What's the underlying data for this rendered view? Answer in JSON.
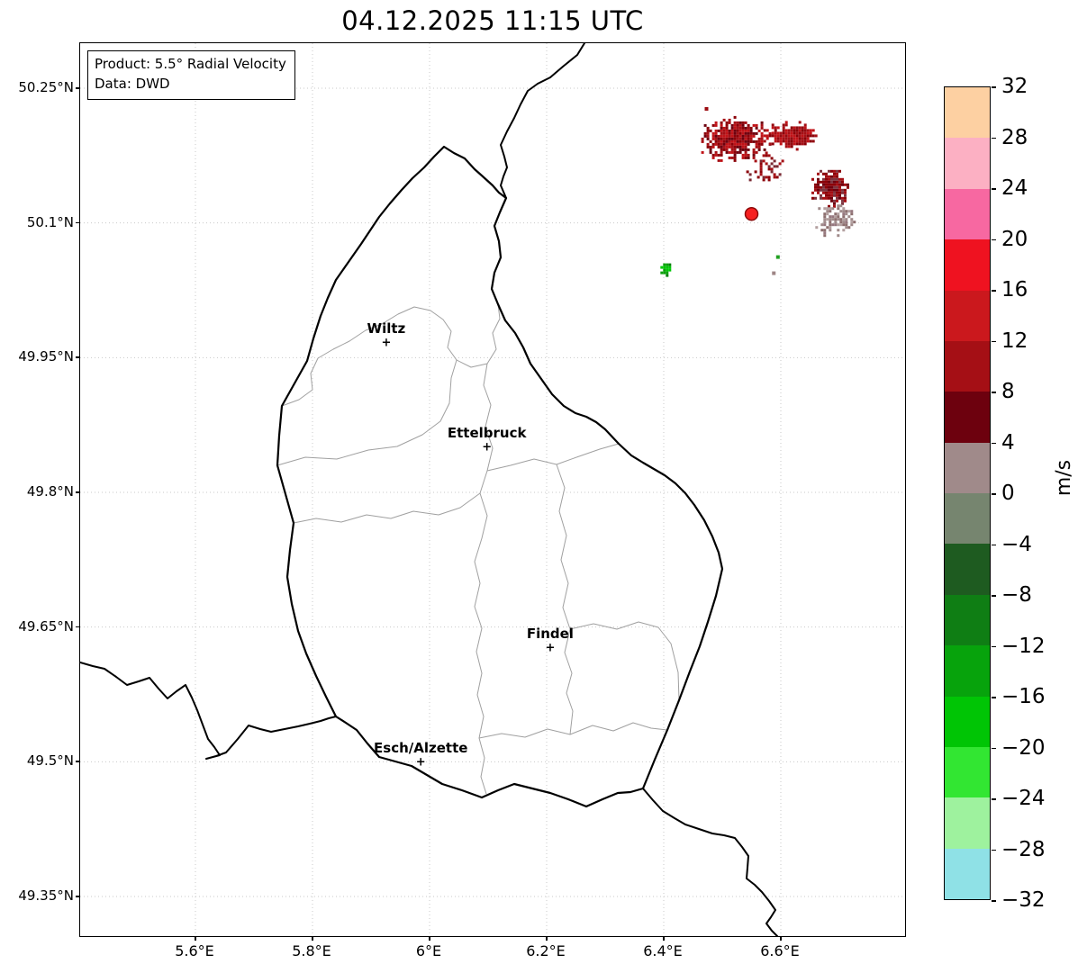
{
  "title": "04.12.2025 11:15 UTC",
  "info_box": {
    "product": "Product: 5.5° Radial Velocity",
    "data_source": "Data: DWD"
  },
  "axes": {
    "x_ticks": [
      {
        "label": "5.6°E",
        "value": 5.6
      },
      {
        "label": "5.8°E",
        "value": 5.8
      },
      {
        "label": "6°E",
        "value": 6.0
      },
      {
        "label": "6.2°E",
        "value": 6.2
      },
      {
        "label": "6.4°E",
        "value": 6.4
      },
      {
        "label": "6.6°E",
        "value": 6.6
      }
    ],
    "y_ticks": [
      {
        "label": "50.25°N",
        "value": 50.25
      },
      {
        "label": "50.1°N",
        "value": 50.1
      },
      {
        "label": "49.95°N",
        "value": 49.95
      },
      {
        "label": "49.8°N",
        "value": 49.8
      },
      {
        "label": "49.65°N",
        "value": 49.65
      },
      {
        "label": "49.5°N",
        "value": 49.5
      },
      {
        "label": "49.35°N",
        "value": 49.35
      }
    ]
  },
  "colorbar": {
    "unit": "m/s",
    "tick_labels": [
      "32",
      "28",
      "24",
      "20",
      "16",
      "12",
      "8",
      "4",
      "0",
      "−4",
      "−8",
      "−12",
      "−16",
      "−20",
      "−24",
      "−28",
      "−32"
    ],
    "segments": [
      {
        "from": 28,
        "to": 32,
        "color": "#fdd0a2"
      },
      {
        "from": 24,
        "to": 28,
        "color": "#fcb0c3"
      },
      {
        "from": 20,
        "to": 24,
        "color": "#f768a1"
      },
      {
        "from": 16,
        "to": 20,
        "color": "#ef1220"
      },
      {
        "from": 12,
        "to": 16,
        "color": "#cb181d"
      },
      {
        "from": 8,
        "to": 12,
        "color": "#a50f15"
      },
      {
        "from": 4,
        "to": 8,
        "color": "#6d010e"
      },
      {
        "from": 0,
        "to": 4,
        "color": "#a08a8a"
      },
      {
        "from": -4,
        "to": 0,
        "color": "#76856f"
      },
      {
        "from": -8,
        "to": -4,
        "color": "#1e5b20"
      },
      {
        "from": -12,
        "to": -8,
        "color": "#0f7e14"
      },
      {
        "from": -16,
        "to": -12,
        "color": "#07a30c"
      },
      {
        "from": -20,
        "to": -16,
        "color": "#00c505"
      },
      {
        "from": -24,
        "to": -20,
        "color": "#32e632"
      },
      {
        "from": -28,
        "to": -24,
        "color": "#9ef29e"
      },
      {
        "from": -32,
        "to": -28,
        "color": "#8fe1e6"
      }
    ]
  },
  "chart_data": {
    "type": "heatmap",
    "title": "04.12.2025 11:15 UTC",
    "product": "5.5° Radial Velocity",
    "data_source": "DWD",
    "units": "m/s",
    "value_range": [
      -32,
      32
    ],
    "value_step": 4,
    "x_axis": {
      "ticks_deg_east": [
        5.6,
        5.8,
        6.0,
        6.2,
        6.4,
        6.6
      ],
      "range": [
        5.4,
        6.81
      ]
    },
    "y_axis": {
      "ticks_deg_north": [
        50.25,
        50.1,
        49.95,
        49.8,
        49.65,
        49.5,
        49.35
      ],
      "range": [
        49.3,
        50.3
      ]
    },
    "grid": true,
    "legend_position": "right-colorbar",
    "radar_site": {
      "lon": 6.55,
      "lat": 50.11
    },
    "cities": [
      {
        "name": "Wiltz",
        "lon": 5.926,
        "lat": 49.966
      },
      {
        "name": "Ettelbruck",
        "lon": 6.098,
        "lat": 49.85
      },
      {
        "name": "Findel",
        "lon": 6.206,
        "lat": 49.627
      },
      {
        "name": "Esch/Alzette",
        "lon": 5.985,
        "lat": 49.499
      }
    ],
    "echo_regions": [
      {
        "name": "echo-band-west",
        "center_lon": 6.518,
        "center_lat": 50.195,
        "rx_deg": 0.058,
        "ry_deg": 0.024,
        "density": 1.0,
        "velocity_mps": [
          8,
          18
        ],
        "palette": [
          "#a50f15",
          "#8b0008",
          "#c01318",
          "#6d010e"
        ]
      },
      {
        "name": "echo-band-east",
        "center_lon": 6.614,
        "center_lat": 50.199,
        "rx_deg": 0.046,
        "ry_deg": 0.014,
        "density": 1.0,
        "velocity_mps": [
          8,
          16
        ],
        "palette": [
          "#a50f15",
          "#8b0008",
          "#c01318",
          "#930a10"
        ]
      },
      {
        "name": "echo-wisps-south",
        "center_lon": 6.575,
        "center_lat": 50.16,
        "rx_deg": 0.031,
        "ry_deg": 0.018,
        "density": 0.4,
        "velocity_mps": [
          6,
          12
        ],
        "palette": [
          "#8b0008",
          "#a50f15",
          "#7a2a33"
        ]
      },
      {
        "name": "echo-northeast-upper",
        "center_lon": 6.683,
        "center_lat": 50.14,
        "rx_deg": 0.032,
        "ry_deg": 0.02,
        "density": 0.95,
        "velocity_mps": [
          4,
          12
        ],
        "palette": [
          "#8b0008",
          "#6d010e",
          "#a50f15",
          "#7d3540"
        ]
      },
      {
        "name": "echo-northeast-lower",
        "center_lon": 6.691,
        "center_lat": 50.104,
        "rx_deg": 0.033,
        "ry_deg": 0.018,
        "density": 0.8,
        "velocity_mps": [
          0,
          6
        ],
        "palette": [
          "#a08a8a",
          "#8d6f6f",
          "#b3a0a0",
          "#96777e"
        ]
      },
      {
        "name": "echo-inbound-small",
        "center_lon": 6.401,
        "center_lat": 50.051,
        "rx_deg": 0.009,
        "ry_deg": 0.008,
        "density": 1.2,
        "velocity_mps": [
          -16,
          -8
        ],
        "palette": [
          "#0aa00a",
          "#00c805",
          "#067f0b"
        ]
      }
    ],
    "specks": [
      {
        "lon": 6.592,
        "lat": 50.064,
        "color": "#20a020"
      },
      {
        "lon": 6.585,
        "lat": 50.046,
        "color": "#9e8585"
      },
      {
        "lon": 6.47,
        "lat": 50.229,
        "color": "#9b0b10"
      }
    ]
  }
}
